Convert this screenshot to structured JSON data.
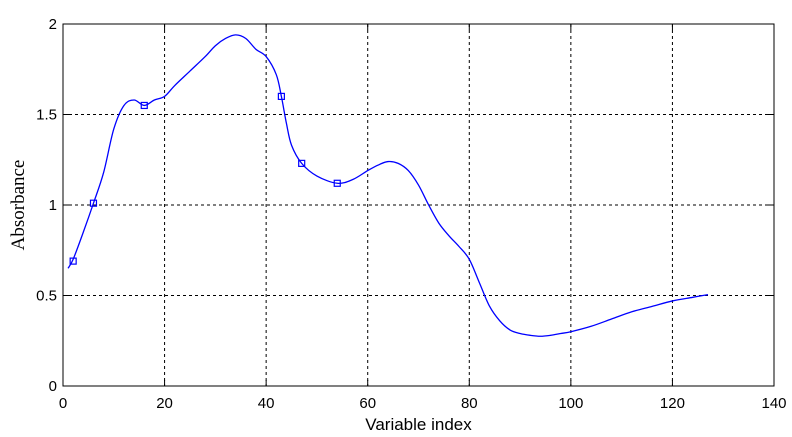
{
  "chart_data": {
    "type": "line",
    "xlabel": "Variable index",
    "ylabel": "Absorbance",
    "xlim": [
      0,
      140
    ],
    "ylim": [
      0,
      2
    ],
    "xticks": [
      0,
      20,
      40,
      60,
      80,
      100,
      120,
      140
    ],
    "yticks": [
      0,
      0.5,
      1,
      1.5,
      2
    ],
    "xtick_labels": [
      "0",
      "20",
      "40",
      "60",
      "80",
      "100",
      "120",
      "140"
    ],
    "ytick_labels": [
      "0",
      "0.5",
      "1",
      "1.5",
      "2"
    ],
    "grid": true,
    "grid_style": "dashed",
    "series": [
      {
        "color": "#0000ff",
        "line": {
          "x": [
            1,
            2,
            4,
            6,
            8,
            10,
            12,
            14,
            16,
            18,
            20,
            22,
            25,
            28,
            30,
            32,
            34,
            36,
            38,
            40,
            42,
            43,
            44,
            45,
            47,
            50,
            54,
            57,
            60,
            62,
            64,
            66,
            68,
            70,
            72,
            74,
            76,
            78,
            80,
            82,
            84,
            86,
            88,
            90,
            92,
            94,
            96,
            98,
            100,
            104,
            108,
            112,
            116,
            120,
            124,
            127
          ],
          "y": [
            0.65,
            0.7,
            0.85,
            1.01,
            1.18,
            1.42,
            1.55,
            1.58,
            1.55,
            1.58,
            1.6,
            1.66,
            1.74,
            1.82,
            1.88,
            1.92,
            1.94,
            1.92,
            1.86,
            1.82,
            1.72,
            1.6,
            1.45,
            1.33,
            1.23,
            1.16,
            1.12,
            1.14,
            1.19,
            1.22,
            1.24,
            1.23,
            1.19,
            1.11,
            1.0,
            0.9,
            0.83,
            0.77,
            0.7,
            0.57,
            0.44,
            0.36,
            0.31,
            0.29,
            0.28,
            0.275,
            0.28,
            0.29,
            0.3,
            0.33,
            0.37,
            0.41,
            0.44,
            0.47,
            0.49,
            0.505
          ]
        },
        "markers": {
          "style": "square",
          "x": [
            2,
            6,
            16,
            43,
            47,
            54
          ],
          "y": [
            0.69,
            1.01,
            1.55,
            1.6,
            1.23,
            1.12
          ]
        }
      }
    ]
  }
}
